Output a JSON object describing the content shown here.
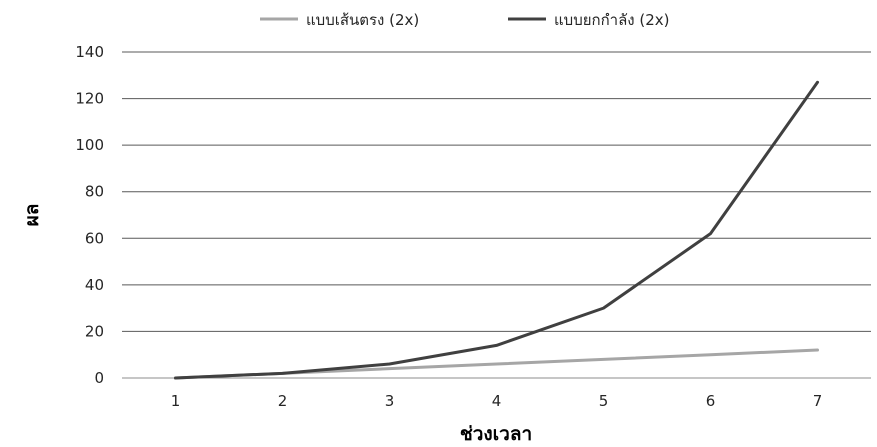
{
  "chart_data": {
    "type": "line",
    "categories": [
      "1",
      "2",
      "3",
      "4",
      "5",
      "6",
      "7"
    ],
    "x": [
      1,
      2,
      3,
      4,
      5,
      6,
      7
    ],
    "series": [
      {
        "name": "แบบเส้นตรง (2x)",
        "values": [
          0,
          2,
          4,
          6,
          8,
          10,
          12
        ],
        "color": "#a6a6a6"
      },
      {
        "name": "แบบยกกำลัง (2x)",
        "values": [
          0,
          2,
          6,
          14,
          30,
          62,
          127
        ],
        "color": "#404040"
      }
    ],
    "xlabel": "ช่วงเวลา",
    "ylabel": "ผล",
    "ylim": [
      0,
      140
    ],
    "yticks": [
      0,
      20,
      40,
      60,
      80,
      100,
      120,
      140
    ],
    "grid": true,
    "legend_position": "top"
  }
}
